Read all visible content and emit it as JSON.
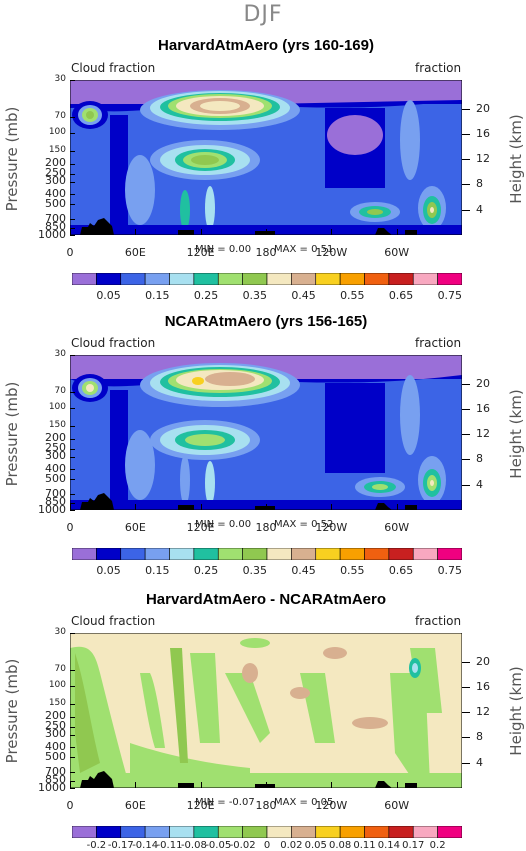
{
  "figure": {
    "title": "DJF"
  },
  "colors": {
    "cloud": [
      "#9a6fd8",
      "#0000c8",
      "#3c64e6",
      "#78a0f0",
      "#a8e0f0",
      "#20c0a0",
      "#a0e070",
      "#90c850",
      "#f4e8c0",
      "#d8b090",
      "#f8d020",
      "#f8a000",
      "#f06010",
      "#c82020",
      "#f8a8c0",
      "#f00080"
    ],
    "diff": [
      "#9a6fd8",
      "#0000c8",
      "#3c64e6",
      "#78a0f0",
      "#a8e0f0",
      "#20c0a0",
      "#a0e070",
      "#90c850",
      "#f4e8c0",
      "#d8b090",
      "#f8d020",
      "#f8a000",
      "#f06010",
      "#c82020",
      "#f8a8c0",
      "#f00080"
    ],
    "land": "#000000"
  },
  "chart_data": [
    {
      "type": "heatmap",
      "title": "HarvardAtmAero (yrs 160-169)",
      "corner_left": "Cloud fraction",
      "corner_right": "fraction",
      "ylabel": "Pressure (mb)",
      "ylabel_right": "Height (km)",
      "x_ticks": [
        "0",
        "60E",
        "120E",
        "180",
        "120W",
        "60W"
      ],
      "y_ticks": [
        "30",
        "70",
        "100",
        "150",
        "200",
        "250",
        "300",
        "400",
        "500",
        "700",
        "850",
        "1000"
      ],
      "y_right_ticks": [
        "20",
        "16",
        "12",
        "8",
        "4"
      ],
      "min_label": "MIN =",
      "min_value": "0.00",
      "max_label": "MAX =",
      "max_value": "0.51",
      "colorbar_labels": [
        "0.05",
        "0.15",
        "0.25",
        "0.35",
        "0.45",
        "0.55",
        "0.65",
        "0.75"
      ]
    },
    {
      "type": "heatmap",
      "title": "NCARAtmAero (yrs 156-165)",
      "corner_left": "Cloud fraction",
      "corner_right": "fraction",
      "ylabel": "Pressure (mb)",
      "ylabel_right": "Height (km)",
      "x_ticks": [
        "0",
        "60E",
        "120E",
        "180",
        "120W",
        "60W"
      ],
      "y_ticks": [
        "30",
        "70",
        "100",
        "150",
        "200",
        "250",
        "300",
        "400",
        "500",
        "700",
        "850",
        "1000"
      ],
      "y_right_ticks": [
        "20",
        "16",
        "12",
        "8",
        "4"
      ],
      "min_label": "MIN =",
      "min_value": "0.00",
      "max_label": "MAX =",
      "max_value": "0.52",
      "colorbar_labels": [
        "0.05",
        "0.15",
        "0.25",
        "0.35",
        "0.45",
        "0.55",
        "0.65",
        "0.75"
      ]
    },
    {
      "type": "heatmap",
      "title": "HarvardAtmAero - NCARAtmAero",
      "corner_left": "Cloud fraction",
      "corner_right": "fraction",
      "ylabel": "Pressure (mb)",
      "ylabel_right": "Height (km)",
      "x_ticks": [
        "0",
        "60E",
        "120E",
        "180",
        "120W",
        "60W"
      ],
      "y_ticks": [
        "30",
        "70",
        "100",
        "150",
        "200",
        "250",
        "300",
        "400",
        "500",
        "700",
        "850",
        "1000"
      ],
      "y_right_ticks": [
        "20",
        "16",
        "12",
        "8",
        "4"
      ],
      "min_label": "MIN =",
      "min_value": "-0.07",
      "max_label": "MAX =",
      "max_value": "0.05",
      "colorbar_labels": [
        "-0.2",
        "-0.17",
        "-0.14",
        "-0.11",
        "-0.08",
        "-0.05",
        "-0.02",
        "0",
        "0.02",
        "0.05",
        "0.08",
        "0.11",
        "0.14",
        "0.17",
        "0.2"
      ]
    }
  ]
}
